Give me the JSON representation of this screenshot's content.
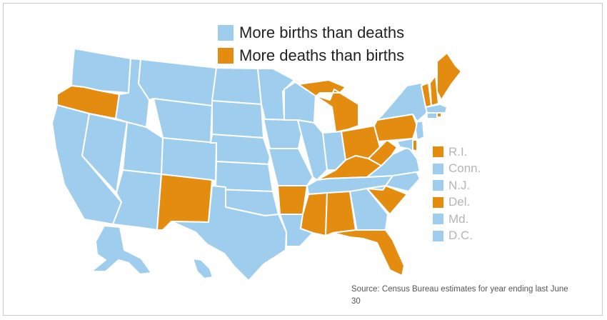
{
  "colors": {
    "births": "#9fcdee",
    "deaths": "#e48c10",
    "border": "#ffffff",
    "small_label": "#b5b5b5"
  },
  "legend": {
    "births_label": "More births than deaths",
    "deaths_label": "More deaths than births"
  },
  "small_states": [
    {
      "label": "R.I.",
      "category": "deaths"
    },
    {
      "label": "Conn.",
      "category": "births"
    },
    {
      "label": "N.J.",
      "category": "births"
    },
    {
      "label": "Del.",
      "category": "deaths"
    },
    {
      "label": "Md.",
      "category": "births"
    },
    {
      "label": "D.C.",
      "category": "births"
    }
  ],
  "states": [
    {
      "id": "WA",
      "category": "births"
    },
    {
      "id": "OR",
      "category": "deaths"
    },
    {
      "id": "CA",
      "category": "births"
    },
    {
      "id": "NV",
      "category": "births"
    },
    {
      "id": "ID",
      "category": "births"
    },
    {
      "id": "MT",
      "category": "births"
    },
    {
      "id": "WY",
      "category": "births"
    },
    {
      "id": "UT",
      "category": "births"
    },
    {
      "id": "AZ",
      "category": "births"
    },
    {
      "id": "CO",
      "category": "births"
    },
    {
      "id": "NM",
      "category": "deaths"
    },
    {
      "id": "ND",
      "category": "births"
    },
    {
      "id": "SD",
      "category": "births"
    },
    {
      "id": "NE",
      "category": "births"
    },
    {
      "id": "KS",
      "category": "births"
    },
    {
      "id": "OK",
      "category": "births"
    },
    {
      "id": "TX",
      "category": "births"
    },
    {
      "id": "MN",
      "category": "births"
    },
    {
      "id": "IA",
      "category": "births"
    },
    {
      "id": "MO",
      "category": "births"
    },
    {
      "id": "AR",
      "category": "deaths"
    },
    {
      "id": "LA",
      "category": "births"
    },
    {
      "id": "WI",
      "category": "births"
    },
    {
      "id": "IL",
      "category": "births"
    },
    {
      "id": "MI",
      "category": "deaths"
    },
    {
      "id": "IN",
      "category": "births"
    },
    {
      "id": "OH",
      "category": "deaths"
    },
    {
      "id": "KY",
      "category": "deaths"
    },
    {
      "id": "TN",
      "category": "births"
    },
    {
      "id": "MS",
      "category": "deaths"
    },
    {
      "id": "AL",
      "category": "deaths"
    },
    {
      "id": "GA",
      "category": "births"
    },
    {
      "id": "FL",
      "category": "deaths"
    },
    {
      "id": "SC",
      "category": "deaths"
    },
    {
      "id": "NC",
      "category": "births"
    },
    {
      "id": "VA",
      "category": "births"
    },
    {
      "id": "WV",
      "category": "deaths"
    },
    {
      "id": "PA",
      "category": "deaths"
    },
    {
      "id": "NY",
      "category": "births"
    },
    {
      "id": "VT",
      "category": "deaths"
    },
    {
      "id": "NH",
      "category": "deaths"
    },
    {
      "id": "ME",
      "category": "deaths"
    },
    {
      "id": "MA",
      "category": "births"
    },
    {
      "id": "CT",
      "category": "births"
    },
    {
      "id": "RI",
      "category": "deaths"
    },
    {
      "id": "NJ",
      "category": "births"
    },
    {
      "id": "DE",
      "category": "deaths"
    },
    {
      "id": "MD",
      "category": "births"
    },
    {
      "id": "AK",
      "category": "births"
    },
    {
      "id": "HI",
      "category": "births"
    }
  ],
  "source": "Source: Census Bureau estimates for year ending last June 30"
}
